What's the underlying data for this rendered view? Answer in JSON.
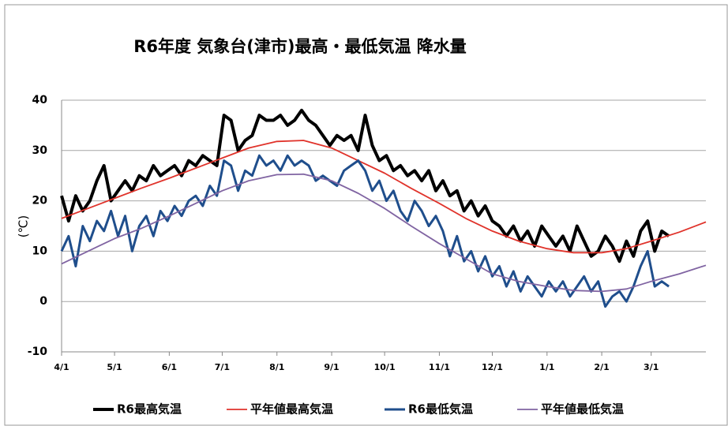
{
  "chart_data": {
    "type": "line",
    "title": "R6年度  気象台(津市)最高・最低気温  降水量",
    "y_label": "(℃)",
    "xlim": [
      0,
      365
    ],
    "xticks": [
      {
        "value": 0,
        "label": "4/1"
      },
      {
        "value": 30,
        "label": "5/1"
      },
      {
        "value": 61,
        "label": "6/1"
      },
      {
        "value": 91,
        "label": "7/1"
      },
      {
        "value": 122,
        "label": "8/1"
      },
      {
        "value": 153,
        "label": "9/1"
      },
      {
        "value": 183,
        "label": "10/1"
      },
      {
        "value": 214,
        "label": "11/1"
      },
      {
        "value": 244,
        "label": "12/1"
      },
      {
        "value": 275,
        "label": "1/1"
      },
      {
        "value": 306,
        "label": "2/1"
      },
      {
        "value": 334,
        "label": "3/1"
      }
    ],
    "ylim": [
      -10,
      40
    ],
    "yticks": [
      -10,
      0,
      10,
      20,
      30,
      40
    ],
    "grid": true,
    "legend": "bottom",
    "series": [
      {
        "name": "R6最高気温",
        "color": "#000000",
        "width": 4,
        "x": [
          0,
          4,
          8,
          12,
          16,
          20,
          24,
          28,
          32,
          36,
          40,
          44,
          48,
          52,
          56,
          60,
          64,
          68,
          72,
          76,
          80,
          84,
          88,
          92,
          96,
          100,
          104,
          108,
          112,
          116,
          120,
          124,
          128,
          132,
          136,
          140,
          144,
          148,
          152,
          156,
          160,
          164,
          168,
          172,
          176,
          180,
          184,
          188,
          192,
          196,
          200,
          204,
          208,
          212,
          216,
          220,
          224,
          228,
          232,
          236,
          240,
          244,
          248,
          252,
          256,
          260,
          264,
          268,
          272,
          276,
          280,
          284,
          288,
          292,
          296,
          300,
          304,
          308,
          312,
          316,
          320,
          324,
          328,
          332,
          336,
          340,
          344
        ],
        "values": [
          21,
          16,
          21,
          18,
          20,
          24,
          27,
          20,
          22,
          24,
          22,
          25,
          24,
          27,
          25,
          26,
          27,
          25,
          28,
          27,
          29,
          28,
          27,
          37,
          36,
          30,
          32,
          33,
          37,
          36,
          36,
          37,
          35,
          36,
          38,
          36,
          35,
          33,
          31,
          33,
          32,
          33,
          30,
          37,
          31,
          28,
          29,
          26,
          27,
          25,
          26,
          24,
          26,
          22,
          24,
          21,
          22,
          18,
          20,
          17,
          19,
          16,
          15,
          13,
          15,
          12,
          14,
          11,
          15,
          13,
          11,
          13,
          10,
          15,
          12,
          9,
          10,
          13,
          11,
          8,
          12,
          9,
          14,
          16,
          10,
          14,
          13
        ]
      },
      {
        "name": "平年値最高気温",
        "color": "#e0332b",
        "width": 1.8,
        "x": [
          0,
          15,
          30,
          45,
          61,
          76,
          91,
          106,
          122,
          137,
          153,
          168,
          183,
          198,
          214,
          229,
          244,
          259,
          275,
          290,
          306,
          320,
          334,
          350,
          365
        ],
        "values": [
          16.5,
          18.5,
          20.5,
          22.5,
          24.5,
          26.5,
          28.5,
          30.5,
          31.8,
          32,
          30.5,
          28,
          25.5,
          22.5,
          19.5,
          16.5,
          14,
          12,
          10.5,
          9.7,
          9.7,
          10.5,
          12,
          13.8,
          15.8
        ]
      },
      {
        "name": "R6最低気温",
        "color": "#1f4e8c",
        "width": 3,
        "x": [
          0,
          4,
          8,
          12,
          16,
          20,
          24,
          28,
          32,
          36,
          40,
          44,
          48,
          52,
          56,
          60,
          64,
          68,
          72,
          76,
          80,
          84,
          88,
          92,
          96,
          100,
          104,
          108,
          112,
          116,
          120,
          124,
          128,
          132,
          136,
          140,
          144,
          148,
          152,
          156,
          160,
          164,
          168,
          172,
          176,
          180,
          184,
          188,
          192,
          196,
          200,
          204,
          208,
          212,
          216,
          220,
          224,
          228,
          232,
          236,
          240,
          244,
          248,
          252,
          256,
          260,
          264,
          268,
          272,
          276,
          280,
          284,
          288,
          292,
          296,
          300,
          304,
          308,
          312,
          316,
          320,
          324,
          328,
          332,
          336,
          340,
          344
        ],
        "values": [
          10,
          13,
          7,
          15,
          12,
          16,
          14,
          18,
          13,
          17,
          10,
          15,
          17,
          13,
          18,
          16,
          19,
          17,
          20,
          21,
          19,
          23,
          21,
          28,
          27,
          22,
          26,
          25,
          29,
          27,
          28,
          26,
          29,
          27,
          28,
          27,
          24,
          25,
          24,
          23,
          26,
          27,
          28,
          26,
          22,
          24,
          20,
          22,
          18,
          16,
          20,
          18,
          15,
          17,
          14,
          9,
          13,
          8,
          10,
          6,
          9,
          5,
          7,
          3,
          6,
          2,
          5,
          3,
          1,
          4,
          2,
          4,
          1,
          3,
          5,
          2,
          4,
          -1,
          1,
          2,
          0,
          3,
          7,
          10,
          3,
          4,
          3
        ]
      },
      {
        "name": "平年値最低気温",
        "color": "#8064a2",
        "width": 1.8,
        "x": [
          0,
          15,
          30,
          45,
          61,
          76,
          91,
          106,
          122,
          137,
          153,
          168,
          183,
          198,
          214,
          229,
          244,
          259,
          275,
          290,
          306,
          320,
          334,
          350,
          365
        ],
        "values": [
          7.5,
          10,
          12.5,
          14.5,
          17,
          19.5,
          22,
          24,
          25.2,
          25.3,
          24,
          21.5,
          18.5,
          15,
          11.5,
          8.5,
          5.5,
          4,
          3,
          2.2,
          2,
          2.5,
          4,
          5.5,
          7.2
        ]
      }
    ]
  }
}
